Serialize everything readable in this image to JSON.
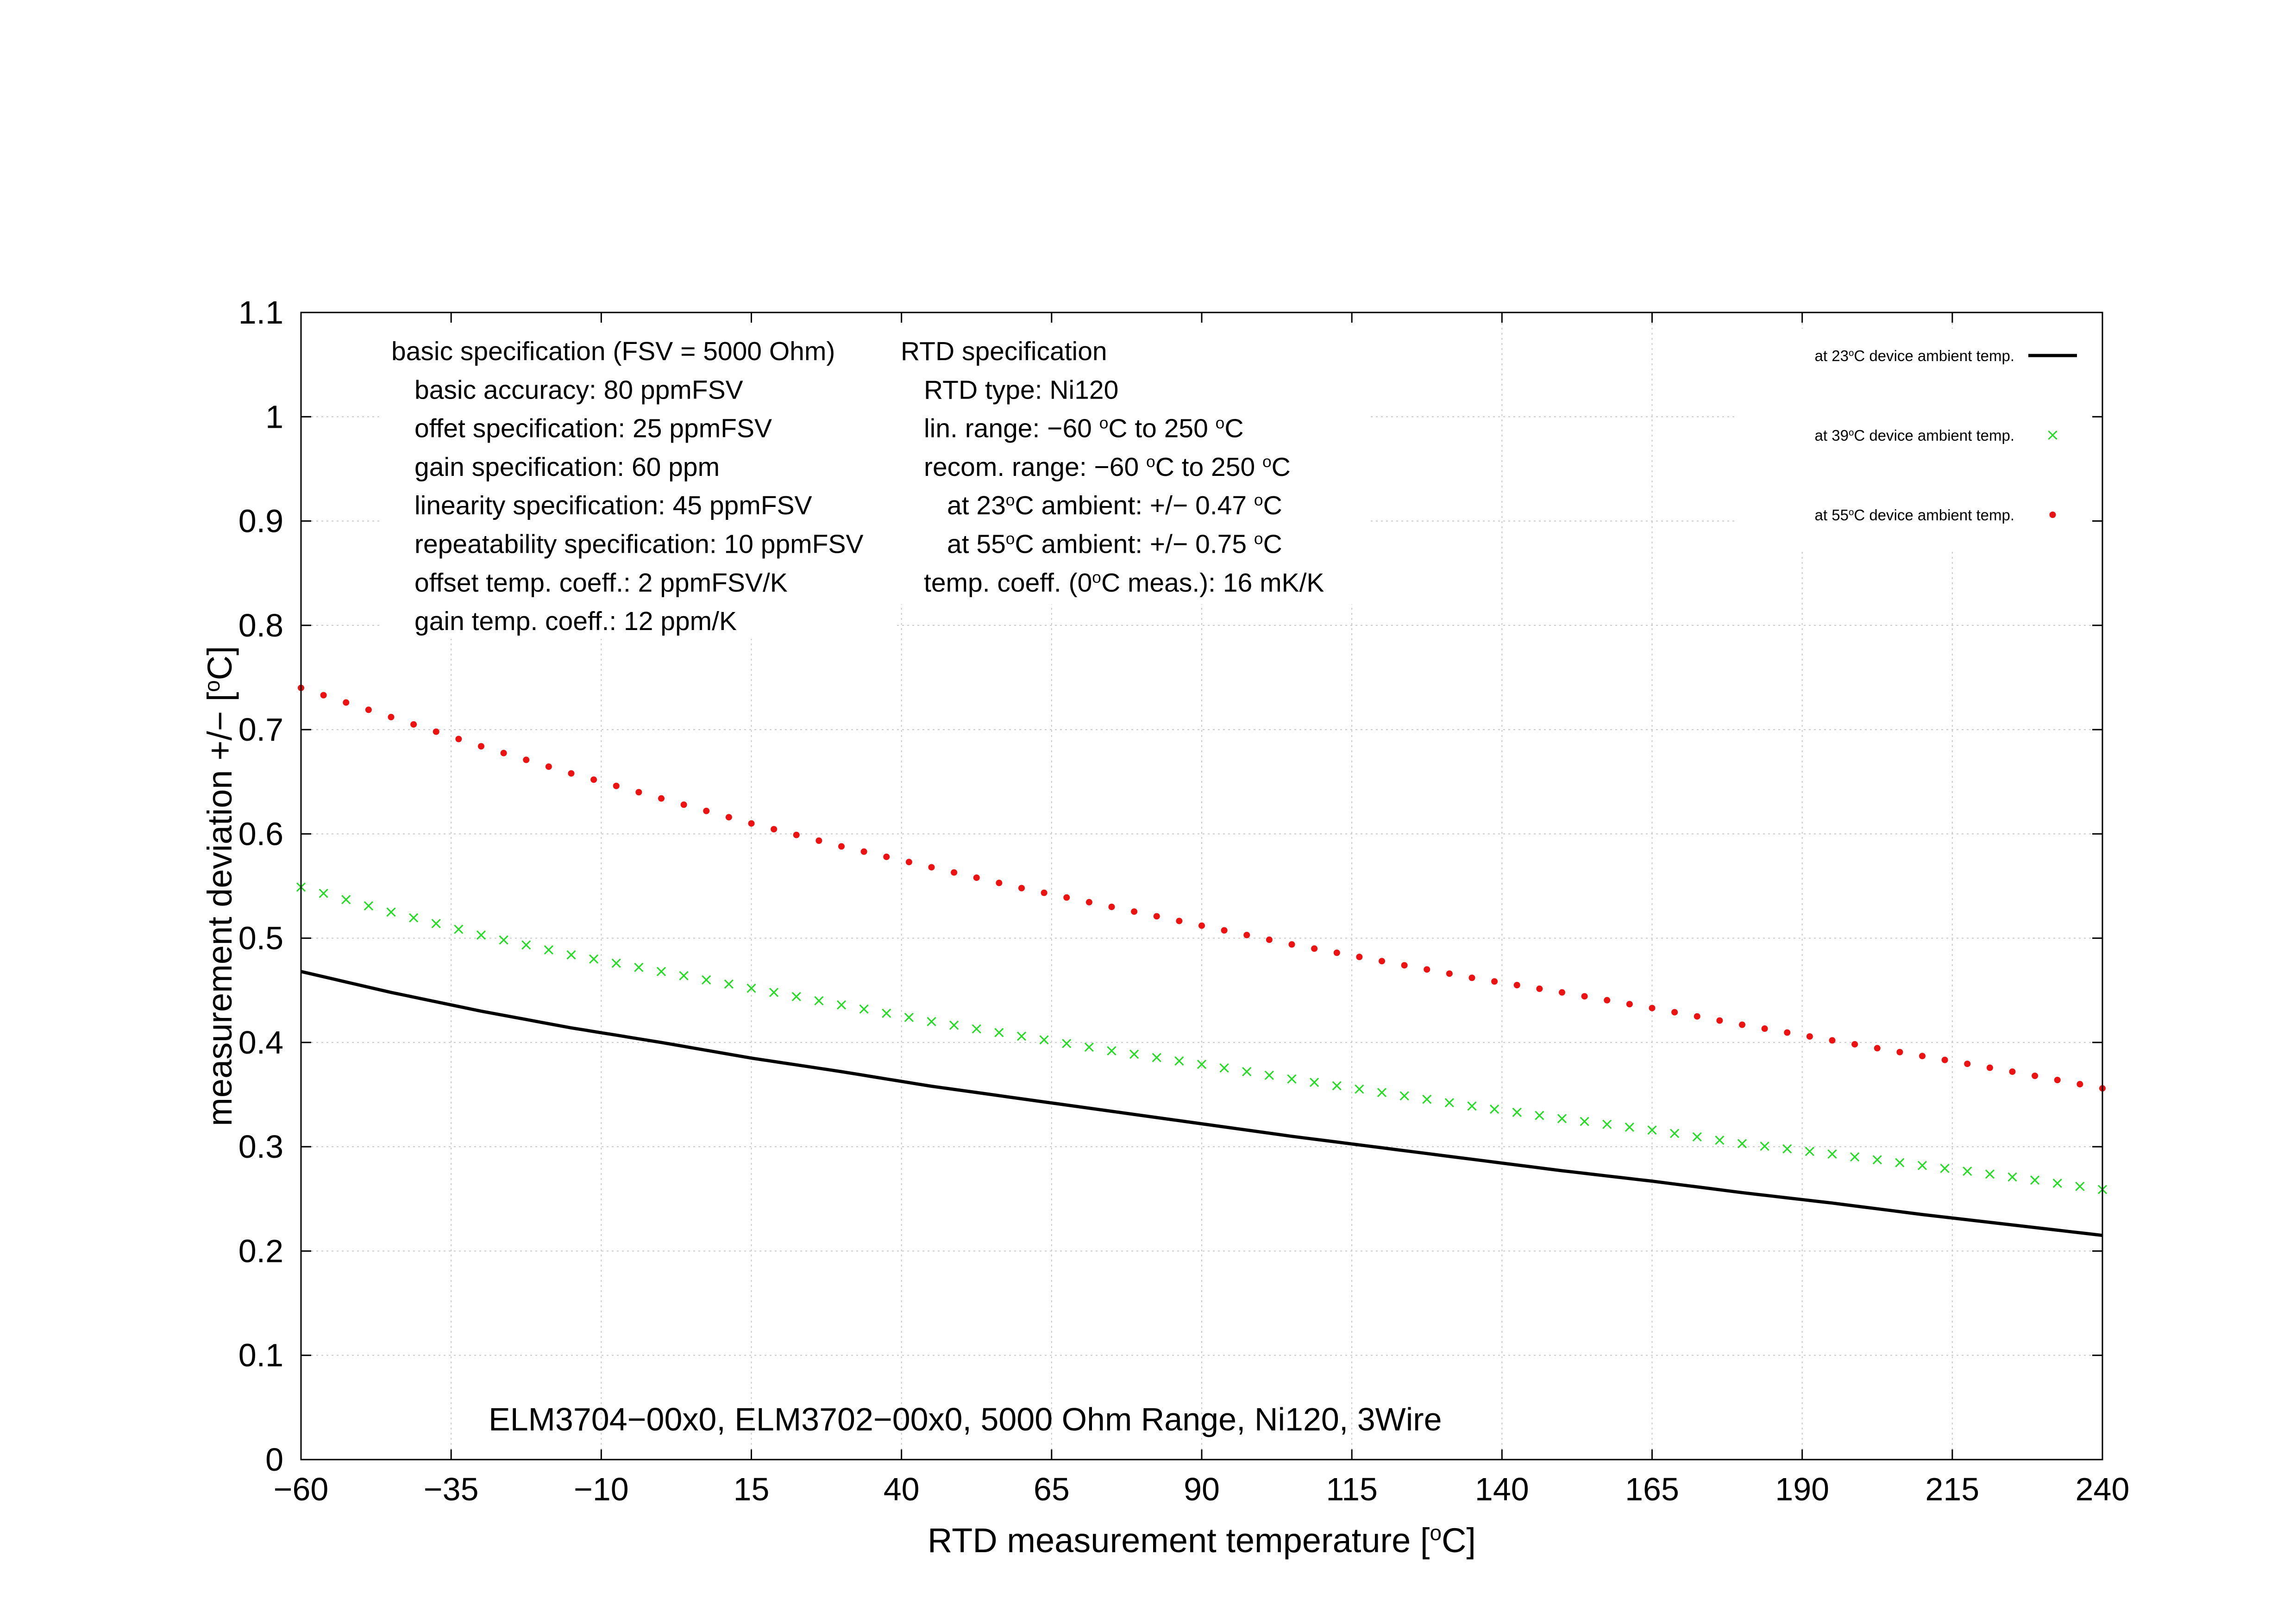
{
  "chart_data": {
    "type": "line",
    "title": "ELM3704−00x0, ELM3702−00x0, 5000 Ohm Range, Ni120, 3Wire",
    "xlabel": {
      "pre": "RTD measurement temperature [",
      "sup": "o",
      "post": "C]"
    },
    "ylabel": {
      "pre": "measurement deviation +/− [",
      "sup": "o",
      "post": "C]"
    },
    "xlim": [
      -60,
      240
    ],
    "ylim": [
      0,
      1.1
    ],
    "x_ticks": [
      -60,
      -35,
      -10,
      15,
      40,
      65,
      90,
      115,
      140,
      165,
      190,
      215,
      240
    ],
    "x_tick_labels": [
      "−60",
      "−35",
      "−10",
      "15",
      "40",
      "65",
      "90",
      "115",
      "140",
      "165",
      "190",
      "215",
      "240"
    ],
    "y_ticks": [
      0,
      0.1,
      0.2,
      0.3,
      0.4,
      0.5,
      0.6,
      0.7,
      0.8,
      0.9,
      1,
      1.1
    ],
    "y_tick_labels": [
      "0",
      "0.1",
      "0.2",
      "0.3",
      "0.4",
      "0.5",
      "0.6",
      "0.7",
      "0.8",
      "0.9",
      "1",
      "1.1"
    ],
    "grid": true,
    "legend_position": "top-right",
    "series": [
      {
        "name": {
          "pre": "at 23",
          "sup": "o",
          "post": "C device ambient temp."
        },
        "style": "line",
        "color": "#000000",
        "points": [
          [
            -60,
            0.468
          ],
          [
            -45,
            0.448
          ],
          [
            -30,
            0.43
          ],
          [
            -15,
            0.414
          ],
          [
            0,
            0.4
          ],
          [
            15,
            0.385
          ],
          [
            30,
            0.372
          ],
          [
            45,
            0.358
          ],
          [
            60,
            0.346
          ],
          [
            75,
            0.334
          ],
          [
            90,
            0.322
          ],
          [
            105,
            0.31
          ],
          [
            120,
            0.299
          ],
          [
            135,
            0.288
          ],
          [
            150,
            0.277
          ],
          [
            165,
            0.267
          ],
          [
            180,
            0.256
          ],
          [
            195,
            0.246
          ],
          [
            210,
            0.235
          ],
          [
            225,
            0.225
          ],
          [
            240,
            0.215
          ]
        ]
      },
      {
        "name": {
          "pre": "at 39",
          "sup": "o",
          "post": "C device ambient temp."
        },
        "style": "x-marker",
        "color": "#22dd22",
        "points": [
          [
            -60,
            0.549
          ],
          [
            -45,
            0.525
          ],
          [
            -30,
            0.503
          ],
          [
            -15,
            0.484
          ],
          [
            0,
            0.468
          ],
          [
            15,
            0.452
          ],
          [
            30,
            0.436
          ],
          [
            45,
            0.42
          ],
          [
            60,
            0.406
          ],
          [
            75,
            0.392
          ],
          [
            90,
            0.379
          ],
          [
            105,
            0.365
          ],
          [
            120,
            0.352
          ],
          [
            135,
            0.339
          ],
          [
            150,
            0.327
          ],
          [
            165,
            0.316
          ],
          [
            180,
            0.303
          ],
          [
            195,
            0.293
          ],
          [
            210,
            0.282
          ],
          [
            225,
            0.271
          ],
          [
            240,
            0.259
          ]
        ]
      },
      {
        "name": {
          "pre": "at 55",
          "sup": "o",
          "post": "C device ambient temp."
        },
        "style": "dot-marker",
        "color": "#ee1111",
        "points": [
          [
            -60,
            0.74
          ],
          [
            -45,
            0.712
          ],
          [
            -30,
            0.684
          ],
          [
            -15,
            0.658
          ],
          [
            0,
            0.634
          ],
          [
            15,
            0.61
          ],
          [
            30,
            0.588
          ],
          [
            45,
            0.568
          ],
          [
            60,
            0.548
          ],
          [
            75,
            0.53
          ],
          [
            90,
            0.512
          ],
          [
            105,
            0.494
          ],
          [
            120,
            0.478
          ],
          [
            135,
            0.462
          ],
          [
            150,
            0.448
          ],
          [
            165,
            0.433
          ],
          [
            180,
            0.417
          ],
          [
            195,
            0.402
          ],
          [
            210,
            0.387
          ],
          [
            225,
            0.372
          ],
          [
            240,
            0.356
          ]
        ]
      }
    ],
    "annotations": {
      "basic_spec": [
        {
          "pre": "basic specification (FSV = 5000 Ohm)"
        },
        {
          "pre": "basic accuracy: 80 ppmFSV"
        },
        {
          "pre": "offet specification: 25 ppmFSV"
        },
        {
          "pre": "gain specification: 60 ppm"
        },
        {
          "pre": "linearity specification: 45 ppmFSV"
        },
        {
          "pre": "repeatability specification: 10 ppmFSV"
        },
        {
          "pre": "offset temp. coeff.: 2 ppmFSV/K"
        },
        {
          "pre": "gain temp. coeff.: 12 ppm/K"
        }
      ],
      "rtd_spec": [
        {
          "pre": "RTD specification"
        },
        {
          "pre": "RTD type: Ni120"
        },
        {
          "pre": "lin. range: −60 ",
          "sup": "o",
          "mid": "C to 250 ",
          "sup2": "o",
          "post": "C"
        },
        {
          "pre": "recom. range: −60 ",
          "sup": "o",
          "mid": "C to 250 ",
          "sup2": "o",
          "post": "C"
        },
        {
          "pre": "at 23",
          "sup": "o",
          "mid": "C ambient: +/− 0.47 ",
          "sup2": "o",
          "post": "C"
        },
        {
          "pre": "at 55",
          "sup": "o",
          "mid": "C ambient: +/− 0.75 ",
          "sup2": "o",
          "post": "C"
        },
        {
          "pre": "temp. coeff. (0",
          "sup": "o",
          "mid": "C meas.): 16 mK/K"
        }
      ]
    }
  }
}
